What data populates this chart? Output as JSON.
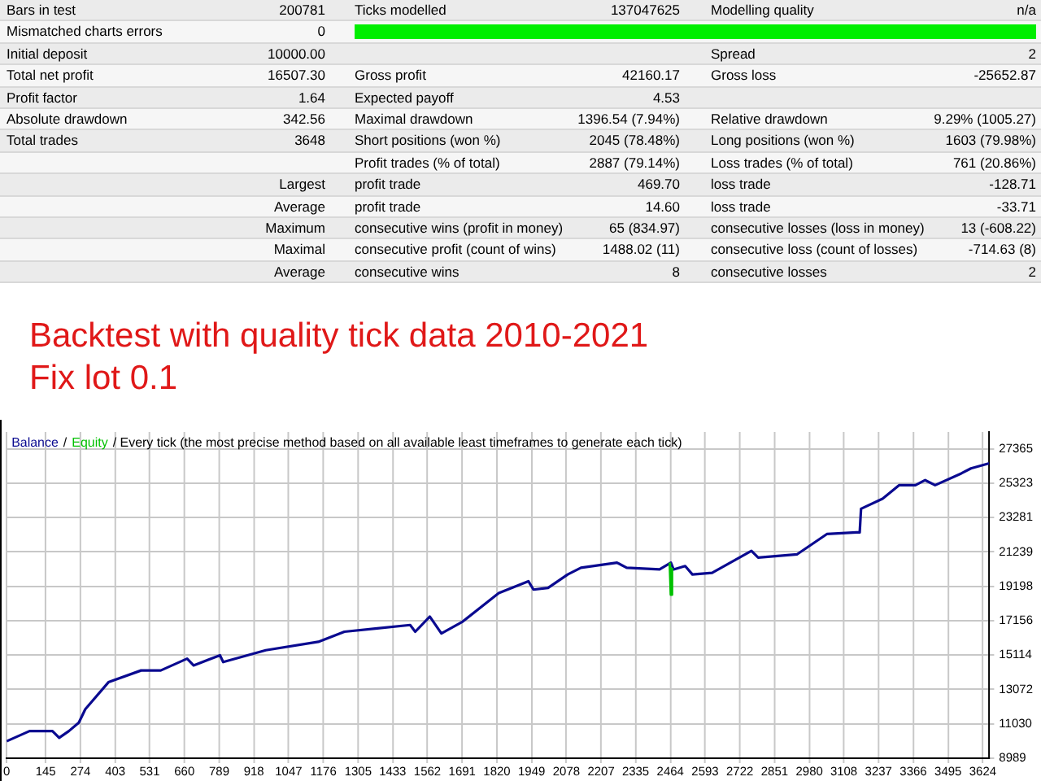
{
  "chart_data": [
    {
      "type": "other",
      "annotations": [
        "Bars in test",
        "200781",
        "Ticks modelled",
        "137047625",
        "Modelling quality",
        "n/a",
        "Mismatched charts errors",
        "0",
        null,
        null,
        null,
        null,
        "Initial deposit",
        "10000.00",
        null,
        null,
        "Spread",
        "2",
        "Total net profit",
        "16507.30",
        "Gross profit",
        "42160.17",
        "Gross loss",
        "-25652.87",
        "Profit factor",
        "1.64",
        "Expected payoff",
        "4.53",
        null,
        null,
        "Absolute drawdown",
        "342.56",
        "Maximal drawdown",
        "1396.54 (7.94%)",
        "Relative drawdown",
        "9.29% (1005.27)",
        "Total trades",
        "3648",
        "Short positions (won %)",
        "2045 (78.48%)",
        "Long positions (won %)",
        "1603 (79.98%)",
        null,
        null,
        "Profit trades (% of total)",
        "2887 (79.14%)",
        "Loss trades (% of total)",
        "761 (20.86%)",
        null,
        "Largest",
        "profit trade",
        "469.70",
        "loss trade",
        "-128.71",
        null,
        "Average",
        "profit trade",
        "14.60",
        "loss trade",
        "-33.71",
        null,
        "Maximum",
        "consecutive wins (profit in money)",
        "65 (834.97)",
        "consecutive losses (loss in money)",
        "13 (-608.22)",
        null,
        "Maximal",
        "consecutive profit (count of wins)",
        "1488.02 (11)",
        "consecutive loss (count of losses)",
        "-714.63 (8)",
        null,
        "Average",
        "consecutive wins",
        "8",
        "consecutive losses",
        "2"
      ]
    },
    {
      "type": "line",
      "title": "Backtest with quality tick data 2010-2021",
      "subtitle": "Fix lot 0.1",
      "legend": "top left",
      "grid": true,
      "line_style": "solid",
      "marker": "none",
      "annotations": [
        "/",
        "/ Every tick (the most precise method based on all available least timeframes to generate each tick)"
      ],
      "xlim": [
        0,
        3648
      ],
      "xticks": [
        0,
        145,
        274,
        403,
        531,
        660,
        789,
        918,
        1047,
        1176,
        1305,
        1433,
        1562,
        1691,
        1820,
        1949,
        2078,
        2207,
        2335,
        2464,
        2593,
        2722,
        2851,
        2980,
        3108,
        3237,
        3366,
        3495,
        3624
      ],
      "ylim": [
        8989,
        28360
      ],
      "yticks": [
        8989,
        11030,
        13072,
        15114,
        17156,
        19198,
        21239,
        23281,
        25323,
        27365
      ],
      "series": [
        {
          "name": "Balance",
          "color": "#0a0a90",
          "x": [
            0,
            85,
            170,
            195,
            231,
            268,
            292,
            378,
            499,
            572,
            670,
            694,
            792,
            804,
            962,
            1157,
            1254,
            1376,
            1498,
            1517,
            1571,
            1614,
            1693,
            1827,
            1937,
            1956,
            2010,
            2083,
            2132,
            2266,
            2302,
            2424,
            2466,
            2476,
            2519,
            2546,
            2619,
            2765,
            2790,
            2935,
            3045,
            3155,
            3167,
            3172,
            3252,
            3313,
            3374,
            3410,
            3447,
            3544,
            3580,
            3648
          ],
          "values": [
            10000,
            10600,
            10600,
            10200,
            10600,
            11100,
            11900,
            13500,
            14200,
            14200,
            14900,
            14500,
            15100,
            14700,
            15400,
            15900,
            16500,
            16700,
            16900,
            16500,
            17400,
            16400,
            17100,
            18800,
            19500,
            19000,
            19100,
            19900,
            20300,
            20600,
            20300,
            20200,
            20600,
            20200,
            20400,
            19900,
            20000,
            21300,
            20900,
            21100,
            22300,
            22400,
            22400,
            23800,
            24400,
            25200,
            25200,
            25500,
            25200,
            25900,
            26200,
            26500
          ]
        },
        {
          "name": "Equity",
          "color": "#00c000",
          "x": [
            2462,
            2466,
            2470
          ],
          "values": [
            20600,
            18700,
            20300
          ]
        }
      ]
    }
  ]
}
